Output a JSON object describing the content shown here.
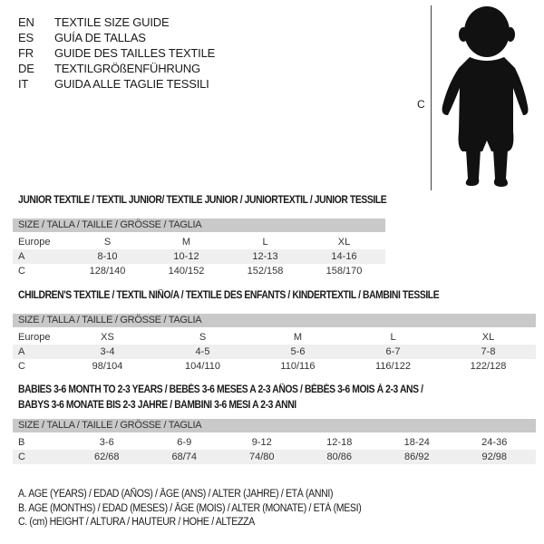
{
  "languages": [
    {
      "code": "EN",
      "text": "TEXTILE SIZE GUIDE"
    },
    {
      "code": "ES",
      "text": "GUÍA DE TALLAS"
    },
    {
      "code": "FR",
      "text": "GUIDE DES TAILLES TEXTILE"
    },
    {
      "code": "DE",
      "text": "TEXTILGRÖßENFÜHRUNG"
    },
    {
      "code": "IT",
      "text": "GUIDA ALLE TAGLIE TESSILI"
    }
  ],
  "figure": {
    "measure_label": "C"
  },
  "size_header": "SIZE / TALLA / TAILLE / GRÖSSE / TAGLIA",
  "junior": {
    "title": "JUNIOR TEXTILE / TEXTIL JUNIOR/ TEXTILE JUNIOR / JUNIORTEXTIL / JUNIOR TESSILE",
    "rows": [
      {
        "label": "Europe",
        "values": [
          "S",
          "M",
          "L",
          "XL"
        ]
      },
      {
        "label": "A",
        "values": [
          "8-10",
          "10-12",
          "12-13",
          "14-16"
        ]
      },
      {
        "label": "C",
        "values": [
          "128/140",
          "140/152",
          "152/158",
          "158/170"
        ]
      }
    ]
  },
  "children": {
    "title": "CHILDREN'S TEXTILE / TEXTIL NIÑO/A / TEXTILE DES ENFANTS / KINDERTEXTIL / BAMBINI TESSILE",
    "rows": [
      {
        "label": "Europe",
        "values": [
          "XS",
          "S",
          "M",
          "L",
          "XL"
        ]
      },
      {
        "label": "A",
        "values": [
          "3-4",
          "4-5",
          "5-6",
          "6-7",
          "7-8"
        ]
      },
      {
        "label": "C",
        "values": [
          "98/104",
          "104/110",
          "110/116",
          "116/122",
          "122/128"
        ]
      }
    ]
  },
  "babies": {
    "title_line1": "BABIES 3-6 MONTH TO 2-3 YEARS / BEBÉS 3-6 MESES A 2-3 AÑOS / BÉBÉS 3-6 MOIS À 2-3 ANS /",
    "title_line2": "BABYS 3-6 MONATE BIS 2-3 JAHRE / BAMBINI 3-6 MESI A 2-3 ANNI",
    "rows": [
      {
        "label": "B",
        "values": [
          "3-6",
          "6-9",
          "9-12",
          "12-18",
          "18-24",
          "24-36"
        ]
      },
      {
        "label": "C",
        "values": [
          "62/68",
          "68/74",
          "74/80",
          "80/86",
          "86/92",
          "92/98"
        ]
      }
    ]
  },
  "legend": [
    "A. AGE (YEARS) / EDAD (AÑOS) / ÂGE (ANS) / ALTER (JAHRE) / ETÀ (ANNI)",
    "B. AGE (MONTHS) / EDAD (MESES) / ÂGE (MOIS) / ALTER (MONATE) / ETÀ (MESI)",
    "C. (cm) HEIGHT / ALTURA / HAUTEUR / HÖHE / ALTEZZA"
  ]
}
